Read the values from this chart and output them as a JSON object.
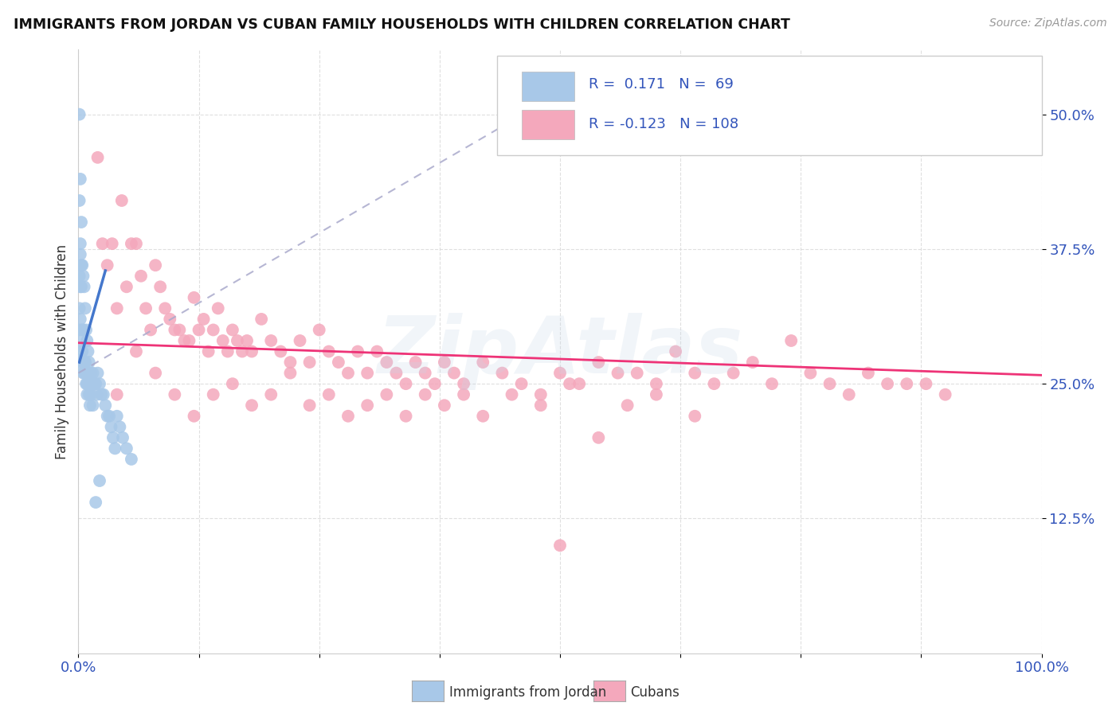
{
  "title": "IMMIGRANTS FROM JORDAN VS CUBAN FAMILY HOUSEHOLDS WITH CHILDREN CORRELATION CHART",
  "source": "Source: ZipAtlas.com",
  "ylabel": "Family Households with Children",
  "legend1_label": "Immigrants from Jordan",
  "legend2_label": "Cubans",
  "r1": 0.171,
  "n1": 69,
  "r2": -0.123,
  "n2": 108,
  "color_jordan": "#a8c8e8",
  "color_cuban": "#f4a8bc",
  "color_jordan_line": "#4477cc",
  "color_cuban_line": "#ee3377",
  "jordan_x": [
    0.001,
    0.001,
    0.001,
    0.001,
    0.002,
    0.002,
    0.002,
    0.003,
    0.003,
    0.003,
    0.004,
    0.004,
    0.005,
    0.005,
    0.005,
    0.006,
    0.006,
    0.007,
    0.007,
    0.008,
    0.008,
    0.009,
    0.009,
    0.01,
    0.01,
    0.011,
    0.012,
    0.012,
    0.013,
    0.014,
    0.015,
    0.016,
    0.017,
    0.018,
    0.019,
    0.02,
    0.022,
    0.024,
    0.026,
    0.028,
    0.03,
    0.032,
    0.034,
    0.036,
    0.038,
    0.04,
    0.043,
    0.046,
    0.05,
    0.055,
    0.001,
    0.001,
    0.002,
    0.002,
    0.003,
    0.003,
    0.004,
    0.005,
    0.006,
    0.007,
    0.008,
    0.009,
    0.01,
    0.011,
    0.012,
    0.013,
    0.015,
    0.018,
    0.022
  ],
  "jordan_y": [
    0.5,
    0.42,
    0.3,
    0.27,
    0.44,
    0.38,
    0.34,
    0.4,
    0.34,
    0.28,
    0.36,
    0.3,
    0.35,
    0.3,
    0.26,
    0.34,
    0.27,
    0.32,
    0.27,
    0.3,
    0.26,
    0.29,
    0.25,
    0.28,
    0.25,
    0.27,
    0.26,
    0.25,
    0.26,
    0.25,
    0.26,
    0.25,
    0.25,
    0.25,
    0.24,
    0.26,
    0.25,
    0.24,
    0.24,
    0.23,
    0.22,
    0.22,
    0.21,
    0.2,
    0.19,
    0.22,
    0.21,
    0.2,
    0.19,
    0.18,
    0.35,
    0.32,
    0.37,
    0.31,
    0.36,
    0.29,
    0.28,
    0.27,
    0.26,
    0.27,
    0.25,
    0.24,
    0.25,
    0.24,
    0.23,
    0.24,
    0.23,
    0.14,
    0.16
  ],
  "cuban_x": [
    0.02,
    0.025,
    0.03,
    0.035,
    0.04,
    0.045,
    0.05,
    0.055,
    0.06,
    0.065,
    0.07,
    0.075,
    0.08,
    0.085,
    0.09,
    0.095,
    0.1,
    0.105,
    0.11,
    0.115,
    0.12,
    0.125,
    0.13,
    0.135,
    0.14,
    0.145,
    0.15,
    0.155,
    0.16,
    0.165,
    0.17,
    0.175,
    0.18,
    0.19,
    0.2,
    0.21,
    0.22,
    0.23,
    0.24,
    0.25,
    0.26,
    0.27,
    0.28,
    0.29,
    0.3,
    0.31,
    0.32,
    0.33,
    0.34,
    0.35,
    0.36,
    0.37,
    0.38,
    0.39,
    0.4,
    0.42,
    0.44,
    0.46,
    0.48,
    0.5,
    0.52,
    0.54,
    0.56,
    0.58,
    0.6,
    0.62,
    0.64,
    0.66,
    0.68,
    0.7,
    0.72,
    0.74,
    0.76,
    0.78,
    0.8,
    0.82,
    0.84,
    0.86,
    0.88,
    0.9,
    0.04,
    0.06,
    0.08,
    0.1,
    0.12,
    0.14,
    0.16,
    0.18,
    0.2,
    0.22,
    0.24,
    0.26,
    0.28,
    0.3,
    0.32,
    0.34,
    0.36,
    0.38,
    0.4,
    0.42,
    0.45,
    0.48,
    0.51,
    0.54,
    0.57,
    0.6,
    0.64,
    0.5
  ],
  "cuban_y": [
    0.46,
    0.38,
    0.36,
    0.38,
    0.32,
    0.42,
    0.34,
    0.38,
    0.38,
    0.35,
    0.32,
    0.3,
    0.36,
    0.34,
    0.32,
    0.31,
    0.3,
    0.3,
    0.29,
    0.29,
    0.33,
    0.3,
    0.31,
    0.28,
    0.3,
    0.32,
    0.29,
    0.28,
    0.3,
    0.29,
    0.28,
    0.29,
    0.28,
    0.31,
    0.29,
    0.28,
    0.27,
    0.29,
    0.27,
    0.3,
    0.28,
    0.27,
    0.26,
    0.28,
    0.26,
    0.28,
    0.27,
    0.26,
    0.25,
    0.27,
    0.26,
    0.25,
    0.27,
    0.26,
    0.25,
    0.27,
    0.26,
    0.25,
    0.24,
    0.26,
    0.25,
    0.27,
    0.26,
    0.26,
    0.25,
    0.28,
    0.26,
    0.25,
    0.26,
    0.27,
    0.25,
    0.29,
    0.26,
    0.25,
    0.24,
    0.26,
    0.25,
    0.25,
    0.25,
    0.24,
    0.24,
    0.28,
    0.26,
    0.24,
    0.22,
    0.24,
    0.25,
    0.23,
    0.24,
    0.26,
    0.23,
    0.24,
    0.22,
    0.23,
    0.24,
    0.22,
    0.24,
    0.23,
    0.24,
    0.22,
    0.24,
    0.23,
    0.25,
    0.2,
    0.23,
    0.24,
    0.22,
    0.1
  ],
  "ylim": [
    0.0,
    0.56
  ],
  "xlim": [
    0.0,
    1.0
  ],
  "watermark": "ZipAtlas",
  "background_color": "#ffffff",
  "grid_color": "#d8d8d8",
  "jordan_trend_x_start": 0.0,
  "jordan_trend_x_solid_end": 0.028,
  "jordan_trend_x_dashed_end": 0.5,
  "cuban_trend_x_start": 0.0,
  "cuban_trend_x_end": 1.0
}
